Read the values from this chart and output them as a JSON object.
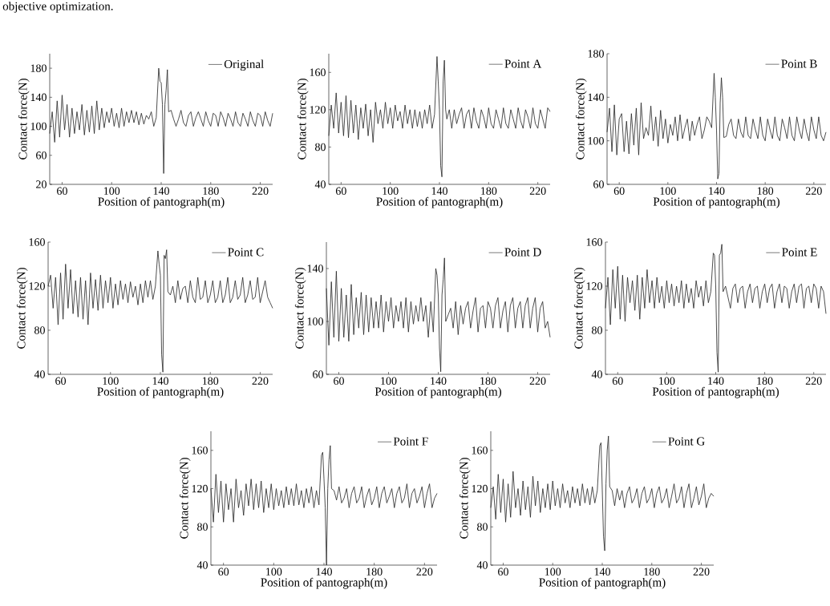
{
  "chart_data": [
    {
      "type": "line",
      "xlabel": "Position of pantograph(m)",
      "ylabel": "Contact force(N)",
      "legend": "top right",
      "annotations": [
        "objective optimization."
      ],
      "xlim": [
        50,
        230
      ],
      "ylim": [
        20,
        200
      ],
      "xticks": [
        60,
        100,
        140,
        180,
        220
      ],
      "yticks": [
        20,
        60,
        100,
        140,
        180
      ],
      "x": [
        50,
        52,
        54,
        56,
        58,
        60,
        62,
        64,
        66,
        68,
        70,
        72,
        74,
        76,
        78,
        80,
        82,
        84,
        86,
        88,
        90,
        92,
        94,
        96,
        98,
        100,
        102,
        104,
        106,
        108,
        110,
        112,
        114,
        116,
        118,
        120,
        122,
        124,
        126,
        128,
        130,
        132,
        134,
        136,
        138,
        139,
        140,
        141,
        142,
        143,
        144,
        145,
        146,
        148,
        150,
        152,
        154,
        156,
        158,
        160,
        162,
        164,
        166,
        168,
        170,
        172,
        174,
        176,
        178,
        180,
        182,
        184,
        186,
        188,
        190,
        192,
        194,
        196,
        198,
        200,
        202,
        204,
        206,
        208,
        210,
        212,
        214,
        216,
        218,
        220,
        222,
        224,
        226,
        228,
        230
      ],
      "series": [
        {
          "name": "Original",
          "color": "#222222",
          "values": [
            90,
            120,
            78,
            135,
            85,
            143,
            95,
            130,
            85,
            125,
            90,
            120,
            95,
            130,
            88,
            122,
            92,
            128,
            90,
            135,
            95,
            125,
            98,
            120,
            105,
            125,
            100,
            118,
            98,
            125,
            100,
            120,
            105,
            122,
            105,
            120,
            102,
            118,
            103,
            115,
            110,
            120,
            100,
            112,
            180,
            162,
            160,
            130,
            35,
            130,
            150,
            178,
            120,
            122,
            110,
            100,
            110,
            122,
            105,
            100,
            115,
            120,
            100,
            112,
            120,
            110,
            100,
            120,
            108,
            100,
            118,
            115,
            100,
            120,
            112,
            100,
            118,
            110,
            100,
            120,
            105,
            100,
            118,
            110,
            100,
            120,
            108,
            100,
            118,
            115,
            100,
            120,
            108,
            100,
            118
          ]
        }
      ]
    },
    {
      "type": "line",
      "xlabel": "Position of pantograph(m)",
      "ylabel": "Contact force(N)",
      "legend": "top right",
      "xlim": [
        50,
        230
      ],
      "ylim": [
        40,
        180
      ],
      "xticks": [
        60,
        100,
        140,
        180,
        220
      ],
      "yticks": [
        40,
        80,
        120,
        160
      ],
      "x": [
        50,
        52,
        54,
        56,
        58,
        60,
        62,
        64,
        66,
        68,
        70,
        72,
        74,
        76,
        78,
        80,
        82,
        84,
        86,
        88,
        90,
        92,
        94,
        96,
        98,
        100,
        102,
        104,
        106,
        108,
        110,
        112,
        114,
        116,
        118,
        120,
        122,
        124,
        126,
        128,
        130,
        132,
        134,
        136,
        138,
        139,
        140,
        141,
        142,
        143,
        144,
        145,
        146,
        148,
        150,
        152,
        154,
        156,
        158,
        160,
        162,
        164,
        166,
        168,
        170,
        172,
        174,
        176,
        178,
        180,
        182,
        184,
        186,
        188,
        190,
        192,
        194,
        196,
        198,
        200,
        202,
        204,
        206,
        208,
        210,
        212,
        214,
        216,
        218,
        220,
        222,
        224,
        226,
        228,
        230
      ],
      "series": [
        {
          "name": "Point A",
          "color": "#222222",
          "values": [
            92,
            125,
            100,
            138,
            95,
            128,
            92,
            135,
            90,
            130,
            95,
            125,
            88,
            122,
            100,
            126,
            92,
            120,
            85,
            128,
            105,
            120,
            100,
            128,
            105,
            122,
            100,
            125,
            108,
            118,
            100,
            125,
            105,
            120,
            100,
            120,
            102,
            118,
            100,
            120,
            105,
            125,
            100,
            115,
            177,
            150,
            120,
            60,
            48,
            150,
            173,
            120,
            110,
            120,
            100,
            120,
            105,
            115,
            122,
            100,
            115,
            120,
            100,
            122,
            108,
            100,
            120,
            112,
            100,
            122,
            105,
            100,
            120,
            110,
            100,
            122,
            105,
            100,
            120,
            110,
            100,
            122,
            108,
            100,
            120,
            112,
            100,
            122,
            105,
            100,
            120,
            110,
            100,
            122,
            118
          ]
        }
      ]
    },
    {
      "type": "line",
      "xlabel": "Position of pantograph(m)",
      "ylabel": "Contact force(N)",
      "legend": "top right",
      "xlim": [
        50,
        230
      ],
      "ylim": [
        60,
        180
      ],
      "xticks": [
        60,
        100,
        140,
        180,
        220
      ],
      "yticks": [
        60,
        100,
        140,
        180
      ],
      "x": [
        50,
        52,
        54,
        56,
        58,
        60,
        62,
        64,
        66,
        68,
        70,
        72,
        74,
        76,
        78,
        80,
        82,
        84,
        86,
        88,
        90,
        92,
        94,
        96,
        98,
        100,
        102,
        104,
        106,
        108,
        110,
        112,
        114,
        116,
        118,
        120,
        122,
        124,
        126,
        128,
        130,
        132,
        134,
        136,
        138,
        139,
        140,
        141,
        142,
        143,
        144,
        145,
        146,
        148,
        150,
        152,
        154,
        156,
        158,
        160,
        162,
        164,
        166,
        168,
        170,
        172,
        174,
        176,
        178,
        180,
        182,
        184,
        186,
        188,
        190,
        192,
        194,
        196,
        198,
        200,
        202,
        204,
        206,
        208,
        210,
        212,
        214,
        216,
        218,
        220,
        222,
        224,
        226,
        228,
        230
      ],
      "series": [
        {
          "name": "Point B",
          "color": "#222222",
          "values": [
            108,
            130,
            90,
            133,
            87,
            120,
            125,
            90,
            118,
            88,
            125,
            96,
            130,
            87,
            135,
            102,
            112,
            105,
            132,
            100,
            122,
            95,
            128,
            102,
            120,
            98,
            115,
            105,
            122,
            100,
            124,
            102,
            112,
            120,
            100,
            118,
            105,
            115,
            122,
            102,
            110,
            122,
            118,
            112,
            162,
            140,
            110,
            65,
            70,
            135,
            158,
            140,
            103,
            104,
            115,
            120,
            105,
            102,
            120,
            108,
            103,
            122,
            105,
            102,
            120,
            110,
            102,
            122,
            105,
            100,
            120,
            110,
            102,
            122,
            105,
            100,
            120,
            112,
            102,
            122,
            105,
            100,
            122,
            110,
            102,
            120,
            108,
            100,
            122,
            110,
            102,
            122,
            105,
            100,
            108
          ]
        }
      ]
    },
    {
      "type": "line",
      "xlabel": "Position of pantograph(m)",
      "ylabel": "Contact force(N)",
      "legend": "top right",
      "xlim": [
        50,
        230
      ],
      "ylim": [
        40,
        160
      ],
      "xticks": [
        60,
        100,
        140,
        180,
        220
      ],
      "yticks": [
        40,
        80,
        120,
        160
      ],
      "x": [
        50,
        52,
        54,
        56,
        58,
        60,
        62,
        64,
        66,
        68,
        70,
        72,
        74,
        76,
        78,
        80,
        82,
        84,
        86,
        88,
        90,
        92,
        94,
        96,
        98,
        100,
        102,
        104,
        106,
        108,
        110,
        112,
        114,
        116,
        118,
        120,
        122,
        124,
        126,
        128,
        130,
        132,
        134,
        136,
        138,
        139,
        140,
        141,
        142,
        143,
        144,
        145,
        146,
        148,
        150,
        152,
        154,
        156,
        158,
        160,
        162,
        164,
        166,
        168,
        170,
        172,
        174,
        176,
        178,
        180,
        182,
        184,
        186,
        188,
        190,
        192,
        194,
        196,
        198,
        200,
        202,
        204,
        206,
        208,
        210,
        212,
        214,
        216,
        218,
        220,
        222,
        224,
        226,
        228,
        230
      ],
      "series": [
        {
          "name": "Point C",
          "color": "#222222",
          "values": [
            120,
            130,
            100,
            128,
            85,
            132,
            90,
            140,
            100,
            135,
            95,
            125,
            92,
            128,
            90,
            125,
            85,
            132,
            100,
            126,
            98,
            130,
            100,
            125,
            105,
            128,
            100,
            122,
            103,
            125,
            108,
            122,
            105,
            124,
            110,
            120,
            103,
            122,
            105,
            125,
            110,
            125,
            108,
            120,
            152,
            140,
            130,
            58,
            42,
            148,
            145,
            153,
            115,
            112,
            120,
            105,
            125,
            108,
            118,
            120,
            105,
            125,
            110,
            105,
            128,
            108,
            110,
            125,
            105,
            112,
            125,
            105,
            110,
            125,
            105,
            112,
            128,
            105,
            110,
            125,
            108,
            112,
            128,
            105,
            112,
            125,
            108,
            110,
            128,
            105,
            115,
            125,
            110,
            105,
            100
          ]
        }
      ]
    },
    {
      "type": "line",
      "xlabel": "Position of pantograph(m)",
      "ylabel": "Contact force(N)",
      "legend": "top right",
      "xlim": [
        50,
        230
      ],
      "ylim": [
        60,
        160
      ],
      "xticks": [
        60,
        100,
        140,
        180,
        220
      ],
      "yticks": [
        60,
        100,
        140
      ],
      "x": [
        50,
        52,
        54,
        56,
        58,
        60,
        62,
        64,
        66,
        68,
        70,
        72,
        74,
        76,
        78,
        80,
        82,
        84,
        86,
        88,
        90,
        92,
        94,
        96,
        98,
        100,
        102,
        104,
        106,
        108,
        110,
        112,
        114,
        116,
        118,
        120,
        122,
        124,
        126,
        128,
        130,
        132,
        134,
        136,
        138,
        139,
        140,
        141,
        142,
        143,
        144,
        145,
        146,
        148,
        150,
        152,
        154,
        156,
        158,
        160,
        162,
        164,
        166,
        168,
        170,
        172,
        174,
        176,
        178,
        180,
        182,
        184,
        186,
        188,
        190,
        192,
        194,
        196,
        198,
        200,
        202,
        204,
        206,
        208,
        210,
        212,
        214,
        216,
        218,
        220,
        222,
        224,
        226,
        228,
        230
      ],
      "series": [
        {
          "name": "Point D",
          "color": "#222222",
          "values": [
            125,
            82,
            130,
            88,
            138,
            85,
            125,
            88,
            120,
            85,
            128,
            90,
            118,
            95,
            122,
            90,
            120,
            92,
            118,
            95,
            115,
            95,
            120,
            92,
            115,
            100,
            118,
            95,
            112,
            100,
            115,
            95,
            118,
            92,
            115,
            98,
            112,
            100,
            118,
            100,
            112,
            88,
            115,
            92,
            140,
            135,
            120,
            80,
            62,
            120,
            132,
            148,
            100,
            105,
            110,
            95,
            115,
            90,
            112,
            98,
            110,
            115,
            95,
            108,
            118,
            92,
            110,
            112,
            95,
            115,
            110,
            95,
            112,
            118,
            95,
            108,
            115,
            92,
            112,
            118,
            95,
            110,
            115,
            95,
            112,
            118,
            95,
            110,
            118,
            92,
            110,
            115,
            95,
            100,
            88
          ]
        }
      ]
    },
    {
      "type": "line",
      "xlabel": "Position of pantograph(m)",
      "ylabel": "Contact force(N)",
      "legend": "top right",
      "xlim": [
        50,
        230
      ],
      "ylim": [
        40,
        160
      ],
      "xticks": [
        60,
        100,
        140,
        180,
        220
      ],
      "yticks": [
        40,
        80,
        120,
        160
      ],
      "x": [
        50,
        52,
        54,
        56,
        58,
        60,
        62,
        64,
        66,
        68,
        70,
        72,
        74,
        76,
        78,
        80,
        82,
        84,
        86,
        88,
        90,
        92,
        94,
        96,
        98,
        100,
        102,
        104,
        106,
        108,
        110,
        112,
        114,
        116,
        118,
        120,
        122,
        124,
        126,
        128,
        130,
        132,
        134,
        136,
        138,
        139,
        140,
        141,
        142,
        143,
        144,
        145,
        146,
        148,
        150,
        152,
        154,
        156,
        158,
        160,
        162,
        164,
        166,
        168,
        170,
        172,
        174,
        176,
        178,
        180,
        182,
        184,
        186,
        188,
        190,
        192,
        194,
        196,
        198,
        200,
        202,
        204,
        206,
        208,
        210,
        212,
        214,
        216,
        218,
        220,
        222,
        224,
        226,
        228,
        230
      ],
      "series": [
        {
          "name": "Point E",
          "color": "#222222",
          "values": [
            100,
            128,
            85,
            135,
            100,
            138,
            90,
            130,
            88,
            128,
            105,
            125,
            98,
            130,
            90,
            128,
            100,
            135,
            105,
            125,
            100,
            128,
            105,
            120,
            100,
            125,
            105,
            122,
            102,
            120,
            105,
            125,
            100,
            122,
            105,
            118,
            100,
            125,
            110,
            120,
            102,
            125,
            105,
            115,
            150,
            148,
            120,
            60,
            42,
            148,
            150,
            158,
            115,
            120,
            110,
            100,
            118,
            122,
            105,
            118,
            120,
            100,
            115,
            122,
            105,
            118,
            120,
            100,
            115,
            122,
            105,
            118,
            122,
            100,
            115,
            122,
            105,
            120,
            118,
            100,
            115,
            122,
            105,
            120,
            122,
            100,
            118,
            120,
            105,
            122,
            118,
            100,
            120,
            115,
            95
          ]
        }
      ]
    },
    {
      "type": "line",
      "xlabel": "Position of pantograph(m)",
      "ylabel": "Contact force(N)",
      "legend": "top right",
      "xlim": [
        50,
        230
      ],
      "ylim": [
        40,
        180
      ],
      "xticks": [
        60,
        100,
        140,
        180,
        220
      ],
      "yticks": [
        40,
        80,
        120,
        160
      ],
      "x": [
        50,
        52,
        54,
        56,
        58,
        60,
        62,
        64,
        66,
        68,
        70,
        72,
        74,
        76,
        78,
        80,
        82,
        84,
        86,
        88,
        90,
        92,
        94,
        96,
        98,
        100,
        102,
        104,
        106,
        108,
        110,
        112,
        114,
        116,
        118,
        120,
        122,
        124,
        126,
        128,
        130,
        132,
        134,
        136,
        138,
        139,
        140,
        141,
        142,
        143,
        144,
        145,
        146,
        148,
        150,
        152,
        154,
        156,
        158,
        160,
        162,
        164,
        166,
        168,
        170,
        172,
        174,
        176,
        178,
        180,
        182,
        184,
        186,
        188,
        190,
        192,
        194,
        196,
        198,
        200,
        202,
        204,
        206,
        208,
        210,
        212,
        214,
        216,
        218,
        220,
        222,
        224,
        226,
        228,
        230
      ],
      "series": [
        {
          "name": "Point F",
          "color": "#222222",
          "values": [
            120,
            85,
            135,
            95,
            128,
            85,
            125,
            98,
            120,
            85,
            130,
            100,
            118,
            92,
            125,
            102,
            130,
            98,
            125,
            100,
            128,
            95,
            120,
            100,
            125,
            98,
            120,
            102,
            118,
            100,
            122,
            103,
            120,
            102,
            125,
            103,
            118,
            100,
            120,
            105,
            122,
            100,
            118,
            103,
            155,
            158,
            130,
            100,
            40,
            120,
            150,
            165,
            120,
            118,
            108,
            122,
            105,
            110,
            120,
            100,
            115,
            122,
            105,
            110,
            122,
            100,
            112,
            120,
            103,
            110,
            122,
            100,
            115,
            122,
            105,
            112,
            120,
            100,
            115,
            122,
            105,
            110,
            125,
            100,
            115,
            120,
            105,
            112,
            122,
            100,
            115,
            125,
            100,
            110,
            115
          ]
        }
      ]
    },
    {
      "type": "line",
      "xlabel": "Position of pantograph(m)",
      "ylabel": "Contact force(N)",
      "legend": "top right",
      "xlim": [
        50,
        230
      ],
      "ylim": [
        40,
        180
      ],
      "xticks": [
        60,
        100,
        140,
        180,
        220
      ],
      "yticks": [
        40,
        80,
        120,
        160
      ],
      "x": [
        50,
        52,
        54,
        56,
        58,
        60,
        62,
        64,
        66,
        68,
        70,
        72,
        74,
        76,
        78,
        80,
        82,
        84,
        86,
        88,
        90,
        92,
        94,
        96,
        98,
        100,
        102,
        104,
        106,
        108,
        110,
        112,
        114,
        116,
        118,
        120,
        122,
        124,
        126,
        128,
        130,
        132,
        134,
        136,
        138,
        139,
        140,
        141,
        142,
        143,
        144,
        145,
        146,
        148,
        150,
        152,
        154,
        156,
        158,
        160,
        162,
        164,
        166,
        168,
        170,
        172,
        174,
        176,
        178,
        180,
        182,
        184,
        186,
        188,
        190,
        192,
        194,
        196,
        198,
        200,
        202,
        204,
        206,
        208,
        210,
        212,
        214,
        216,
        218,
        220,
        222,
        224,
        226,
        228,
        230
      ],
      "series": [
        {
          "name": "Point G",
          "color": "#222222",
          "values": [
            100,
            122,
            88,
            135,
            95,
            130,
            85,
            125,
            90,
            138,
            100,
            120,
            92,
            128,
            98,
            122,
            90,
            133,
            102,
            128,
            95,
            120,
            100,
            125,
            98,
            128,
            102,
            120,
            100,
            125,
            105,
            118,
            100,
            122,
            105,
            120,
            102,
            125,
            105,
            120,
            103,
            122,
            105,
            118,
            165,
            168,
            null,
            70,
            55,
            125,
            160,
            175,
            122,
            118,
            102,
            120,
            108,
            118,
            100,
            115,
            122,
            105,
            110,
            120,
            100,
            115,
            122,
            105,
            110,
            120,
            100,
            115,
            122,
            105,
            110,
            120,
            100,
            112,
            125,
            105,
            110,
            122,
            100,
            115,
            125,
            100,
            110,
            122,
            103,
            112,
            125,
            100,
            110,
            115,
            112
          ]
        }
      ]
    }
  ]
}
